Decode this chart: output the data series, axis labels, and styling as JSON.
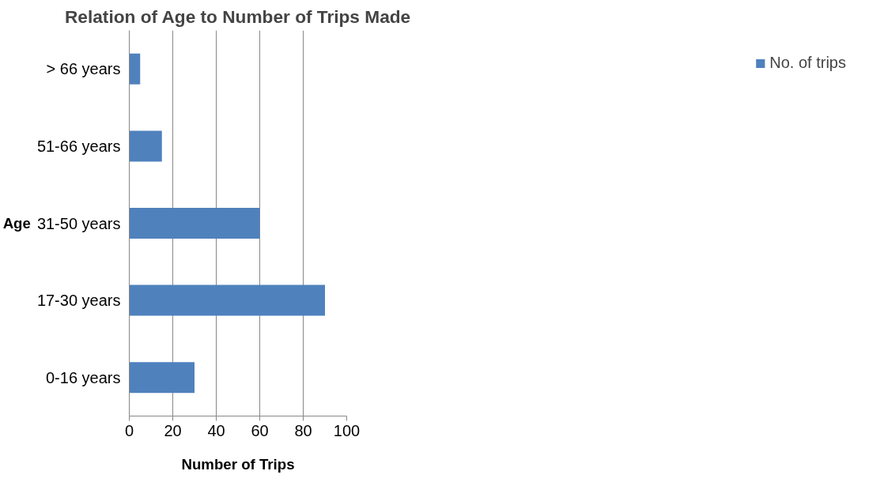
{
  "chart_data": {
    "type": "bar",
    "orientation": "horizontal",
    "title": "Relation of Age to Number of Trips Made",
    "xlabel": "Number of Trips",
    "ylabel": "Age",
    "categories": [
      "> 66 years",
      "51-66 years",
      "31-50 years",
      "17-30 years",
      "0-16 years"
    ],
    "series": [
      {
        "name": "No. of trips",
        "color": "#4f81bd",
        "values": [
          5,
          15,
          60,
          90,
          30
        ]
      }
    ],
    "xlim": [
      0,
      100
    ],
    "xticks": [
      0,
      20,
      40,
      60,
      80,
      100
    ],
    "grid": "x",
    "legend": "right"
  }
}
